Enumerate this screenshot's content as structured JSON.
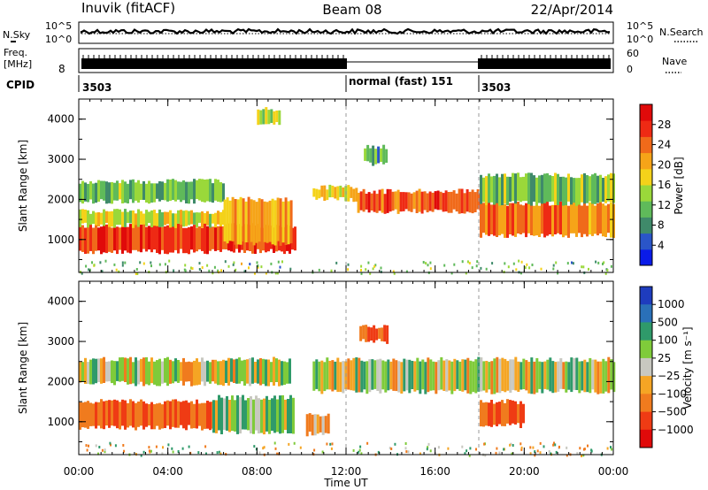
{
  "header": {
    "station": "Inuvik (fitACF)",
    "beam": "Beam 08",
    "date": "22/Apr/2014"
  },
  "noise_panel": {
    "left_label": "N.Sky",
    "right_label": "N.Search",
    "right_line_style": "dotted",
    "ticks_left": [
      "10^5",
      "10^0"
    ],
    "ticks_right": [
      "10^5",
      "10^0"
    ]
  },
  "freq_panel": {
    "left_label_line1": "Freq.",
    "left_label_line2": "[MHz]",
    "left_ticks": [
      "8"
    ],
    "right_label": "Nave",
    "right_line_style": "dotted",
    "right_ticks": [
      "60",
      "0"
    ]
  },
  "cpid": {
    "label": "CPID",
    "segments": [
      {
        "start": "00:00",
        "end": "12:00",
        "text": "3503"
      },
      {
        "start": "12:00",
        "end": "18:00",
        "text": "normal (fast) 151"
      },
      {
        "start": "18:00",
        "end": "24:00",
        "text": "3503"
      }
    ]
  },
  "chart_data": [
    {
      "type": "heatmap",
      "panel": "power",
      "ylabel": "Slant Range [km]",
      "ylim": [
        180,
        4500
      ],
      "yticks": [
        "1000",
        "2000",
        "3000",
        "4000"
      ],
      "xlim_hours": [
        0,
        24
      ],
      "colorbar": {
        "label": "Power [dB]",
        "ticks": [
          "4",
          "8",
          "12",
          "16",
          "20",
          "24",
          "28"
        ],
        "colors": [
          "#0a1be8",
          "#2a55c8",
          "#3f8a6a",
          "#5fba5a",
          "#9ad83a",
          "#f4d21a",
          "#f6a418",
          "#f06a1a",
          "#ee2a14",
          "#e00a0a"
        ]
      },
      "echo_bands": [
        {
          "start_h": 0.0,
          "end_h": 9.7,
          "range_km": [
            700,
            1350
          ],
          "dB": 28
        },
        {
          "start_h": 0.0,
          "end_h": 6.5,
          "range_km": [
            1350,
            1700
          ],
          "dB": 16
        },
        {
          "start_h": 0.0,
          "end_h": 6.5,
          "range_km": [
            1950,
            2450
          ],
          "dB": 12
        },
        {
          "start_h": 6.5,
          "end_h": 9.5,
          "range_km": [
            900,
            2000
          ],
          "dB": 22
        },
        {
          "start_h": 10.5,
          "end_h": 12.5,
          "range_km": [
            2000,
            2300
          ],
          "dB": 18
        },
        {
          "start_h": 12.5,
          "end_h": 18.0,
          "range_km": [
            1700,
            2200
          ],
          "dB": 26
        },
        {
          "start_h": 18.0,
          "end_h": 24.0,
          "range_km": [
            1100,
            1900
          ],
          "dB": 24
        },
        {
          "start_h": 18.0,
          "end_h": 24.0,
          "range_km": [
            1900,
            2600
          ],
          "dB": 12
        },
        {
          "start_h": 12.8,
          "end_h": 13.8,
          "range_km": [
            2900,
            3300
          ],
          "dB": 10
        },
        {
          "start_h": 8.0,
          "end_h": 9.0,
          "range_km": [
            3900,
            4250
          ],
          "dB": 14
        }
      ]
    },
    {
      "type": "heatmap",
      "panel": "velocity",
      "ylabel": "Slant Range [km]",
      "ylim": [
        180,
        4500
      ],
      "yticks": [
        "1000",
        "2000",
        "3000",
        "4000"
      ],
      "xlabel": "Time UT",
      "xticks": [
        "00:00",
        "04:00",
        "08:00",
        "12:00",
        "16:00",
        "20:00",
        "00:00"
      ],
      "xlim_hours": [
        0,
        24
      ],
      "colorbar": {
        "label": "Velocity [m s⁻¹]",
        "ticks": [
          "1000",
          "500",
          "100",
          "25",
          "−25",
          "−100",
          "−500",
          "−1000"
        ],
        "colors": [
          "#1e3cbe",
          "#2a70b8",
          "#2f9a6a",
          "#7fcb3a",
          "#c8c8c0",
          "#f5a524",
          "#f07b1e",
          "#ef3b14",
          "#e00a0a"
        ]
      },
      "echo_bands": [
        {
          "start_h": 0.0,
          "end_h": 6.0,
          "range_km": [
            850,
            1500
          ],
          "v_mps": -500
        },
        {
          "start_h": 6.0,
          "end_h": 9.6,
          "range_km": [
            750,
            1600
          ],
          "v_mps": 100
        },
        {
          "start_h": 0.0,
          "end_h": 9.5,
          "range_km": [
            1950,
            2550
          ],
          "v_mps": 0
        },
        {
          "start_h": 10.5,
          "end_h": 24.0,
          "range_km": [
            1750,
            2550
          ],
          "v_mps": 0
        },
        {
          "start_h": 18.0,
          "end_h": 20.0,
          "range_km": [
            900,
            1500
          ],
          "v_mps": -500
        },
        {
          "start_h": 12.6,
          "end_h": 13.8,
          "range_km": [
            3000,
            3350
          ],
          "v_mps": -500
        },
        {
          "start_h": 10.2,
          "end_h": 11.2,
          "range_km": [
            700,
            1200
          ],
          "v_mps": -100
        }
      ]
    }
  ]
}
